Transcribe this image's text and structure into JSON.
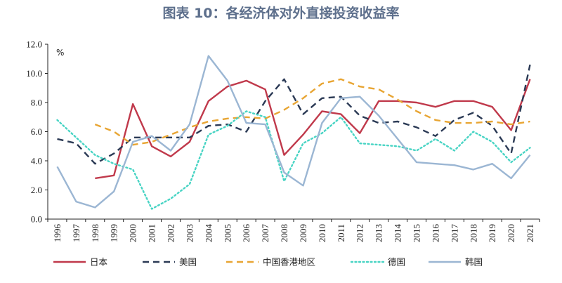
{
  "chart_data": {
    "type": "line",
    "title": "图表 10：各经济体对外直接投资收益率",
    "ylabel": "%",
    "ylim": [
      0,
      12
    ],
    "yticks": [
      "0.0",
      "2.0",
      "4.0",
      "6.0",
      "8.0",
      "10.0",
      "12.0"
    ],
    "ytick_values": [
      0,
      2,
      4,
      6,
      8,
      10,
      12
    ],
    "categories": [
      "1996",
      "1997",
      "1998",
      "1999",
      "2000",
      "2001",
      "2002",
      "2003",
      "2004",
      "2005",
      "2006",
      "2007",
      "2008",
      "2009",
      "2010",
      "2011",
      "2012",
      "2013",
      "2014",
      "2015",
      "2016",
      "2017",
      "2018",
      "2019",
      "2020",
      "2021"
    ],
    "grid": false,
    "legend_position": "bottom",
    "series": [
      {
        "name": "日本",
        "color": "#c0394b",
        "style": "solid",
        "values": [
          null,
          null,
          2.8,
          3.0,
          7.9,
          5.0,
          4.3,
          5.3,
          8.1,
          9.1,
          9.5,
          8.9,
          4.4,
          5.8,
          7.4,
          7.2,
          5.9,
          8.1,
          8.1,
          8.0,
          7.7,
          8.1,
          8.1,
          7.7,
          6.1,
          9.6
        ]
      },
      {
        "name": "美国",
        "color": "#2b3a55",
        "style": "dashed",
        "values": [
          5.5,
          5.2,
          3.8,
          4.5,
          5.6,
          5.6,
          5.6,
          5.6,
          6.4,
          6.5,
          6.0,
          8.1,
          9.6,
          7.2,
          8.3,
          8.4,
          7.1,
          6.6,
          6.7,
          6.3,
          5.7,
          6.8,
          7.3,
          6.4,
          4.5,
          10.6
        ]
      },
      {
        "name": "中国香港地区",
        "color": "#e8a533",
        "style": "dashed",
        "values": [
          null,
          null,
          6.5,
          6.0,
          5.1,
          5.3,
          5.8,
          6.3,
          6.7,
          6.9,
          7.0,
          6.9,
          7.5,
          8.3,
          9.3,
          9.6,
          9.1,
          8.9,
          8.2,
          7.4,
          6.8,
          6.6,
          6.6,
          6.7,
          6.5,
          6.7
        ]
      },
      {
        "name": "德国",
        "color": "#48d4c4",
        "style": "dotted",
        "values": [
          6.8,
          5.6,
          4.4,
          3.8,
          3.4,
          0.7,
          1.4,
          2.4,
          5.8,
          6.4,
          7.4,
          7.0,
          2.6,
          5.2,
          5.9,
          7.0,
          5.2,
          5.1,
          5.0,
          4.7,
          5.5,
          4.7,
          6.0,
          5.3,
          3.9,
          4.9
        ]
      },
      {
        "name": "韩国",
        "color": "#9bb6d3",
        "style": "solid",
        "values": [
          3.6,
          1.2,
          0.8,
          1.9,
          5.3,
          5.7,
          4.7,
          6.5,
          11.2,
          9.5,
          6.6,
          6.5,
          3.2,
          2.3,
          6.6,
          8.3,
          8.4,
          7.1,
          5.5,
          3.9,
          3.8,
          3.7,
          3.4,
          3.8,
          2.8,
          4.4
        ]
      }
    ]
  }
}
